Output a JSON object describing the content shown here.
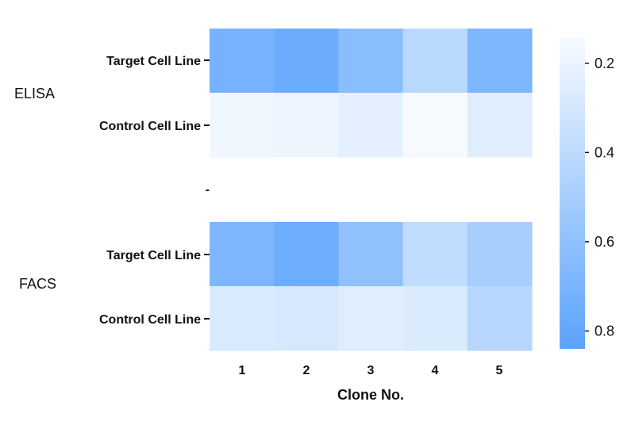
{
  "chart_data": {
    "type": "heatmap",
    "xlabel": "Clone No.",
    "categories": [
      "1",
      "2",
      "3",
      "4",
      "5"
    ],
    "rows": [
      {
        "group": "ELISA",
        "label": "Target Cell Line",
        "values": [
          0.72,
          0.77,
          0.63,
          0.42,
          0.69
        ]
      },
      {
        "group": "ELISA",
        "label": "Control Cell Line",
        "values": [
          0.17,
          0.19,
          0.23,
          0.15,
          0.25
        ]
      },
      {
        "group": "",
        "label": "",
        "values": [
          null,
          null,
          null,
          null,
          null
        ]
      },
      {
        "group": "FACS",
        "label": "Target Cell Line",
        "values": [
          0.69,
          0.76,
          0.6,
          0.39,
          0.5
        ]
      },
      {
        "group": "FACS",
        "label": "Control Cell Line",
        "values": [
          0.28,
          0.29,
          0.25,
          0.27,
          0.43
        ]
      }
    ],
    "groups": [
      "ELISA",
      "FACS"
    ],
    "spacer_label": "-",
    "colorbar": {
      "ticks": [
        "0.2",
        "0.4",
        "0.6",
        "0.8"
      ],
      "tick_values": [
        0.2,
        0.4,
        0.6,
        0.8
      ],
      "range": [
        0.14,
        0.84
      ],
      "color_low": "#f8fbff",
      "color_high": "#5ba3fc"
    }
  }
}
